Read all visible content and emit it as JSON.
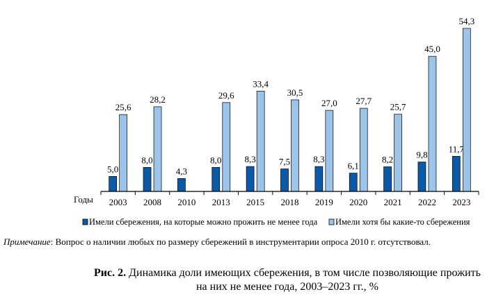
{
  "chart_data": {
    "type": "bar",
    "xlabel": "Годы",
    "categories": [
      "2003",
      "2008",
      "2010",
      "2013",
      "2015",
      "2018",
      "2019",
      "2020",
      "2021",
      "2022",
      "2023"
    ],
    "series": [
      {
        "name": "Имели сбережения, на которые можно прожить не менее года",
        "color": "#0a5aa8",
        "values": [
          5.0,
          8.0,
          4.3,
          8.0,
          8.3,
          7.5,
          8.3,
          6.1,
          8.2,
          9.8,
          11.7
        ],
        "labels": [
          "5,0",
          "8,0",
          "4,3",
          "8,0",
          "8,3",
          "7,5",
          "8,3",
          "6,1",
          "8,2",
          "9,8",
          "11,7"
        ]
      },
      {
        "name": "Имели хотя бы какие-то сбережения",
        "color": "#9cc3e8",
        "values": [
          25.6,
          28.2,
          null,
          29.6,
          33.4,
          30.5,
          27.0,
          27.7,
          25.7,
          45.0,
          54.3
        ],
        "labels": [
          "25,6",
          "28,2",
          "",
          "29,6",
          "33,4",
          "30,5",
          "27,0",
          "27,7",
          "25,7",
          "45,0",
          "54,3"
        ]
      }
    ],
    "ylim": [
      0,
      55
    ],
    "grid": false,
    "legend_placement": "bottom",
    "note_label": "Примечание",
    "note_text": ": Вопрос о наличии любых по размеру сбережений в инструментарии опроса 2010 г. отсутствовал.",
    "caption_label": "Рис. 2.",
    "caption_line1": " Динамика доли имеющих сбережения, в том числе позволяющие прожить",
    "caption_line2": "на них не менее года, 2003–2023 гг., %"
  }
}
